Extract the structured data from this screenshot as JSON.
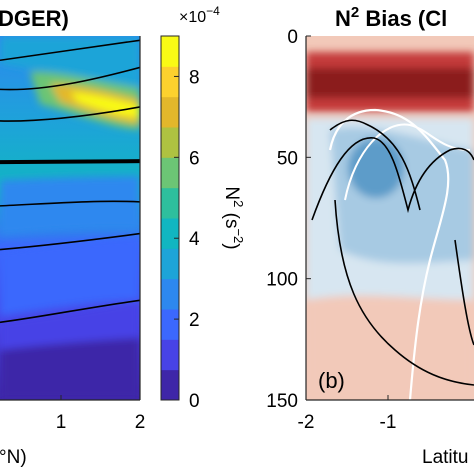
{
  "chart_data": [
    {
      "type": "heatmap",
      "title_visible": "DGER)",
      "xlabel_visible": "°N)",
      "x_tick_labels": [
        "1",
        "2"
      ],
      "xlim": [
        -2,
        2
      ],
      "ylim": [
        0,
        150
      ],
      "y_reversed": true,
      "colorbar": {
        "label": "N² (s⁻²)",
        "label_base": "N",
        "label_sup": "2",
        "label_paren_open": " (s",
        "label_paren_sup": "−2",
        "label_paren_close": ")",
        "multiplier_prefix": "×10",
        "multiplier_exp": "−4",
        "ticks": [
          "0",
          "2",
          "4",
          "6",
          "8"
        ],
        "tick_values": [
          0,
          2,
          4,
          6,
          8
        ],
        "range": [
          0,
          9
        ],
        "colormap": [
          "#3e26a8",
          "#4743e6",
          "#3b68fd",
          "#2d88ef",
          "#1da4d8",
          "#11b6c1",
          "#2ebf9d",
          "#6cc575",
          "#aec241",
          "#e3b72b",
          "#fcd12e",
          "#f9fb15"
        ]
      },
      "contour_depths_m": [
        10,
        22,
        35,
        52,
        70,
        88,
        118
      ],
      "thick_contour_depth_m": 52
    },
    {
      "type": "heatmap",
      "title_prefix": "N",
      "title_sup": "2",
      "title_rest": " Bias (Cl",
      "panel_label": "(b)",
      "xlabel_visible": "Latitu",
      "x_tick_labels": [
        "-2",
        "-1"
      ],
      "x_tick_values": [
        -2,
        -1
      ],
      "y_tick_labels": [
        "0",
        "50",
        "100",
        "150"
      ],
      "y_tick_values": [
        0,
        50,
        100,
        150
      ],
      "ylim": [
        0,
        150
      ],
      "y_reversed": true,
      "diverging_colors": {
        "strong_positive": "#8b1a1a",
        "positive": "#c43b3b",
        "weak_positive": "#f2c9b9",
        "weak_negative": "#d7e6f1",
        "negative": "#a7cae3",
        "strong_negative": "#5d9cc9"
      }
    }
  ]
}
